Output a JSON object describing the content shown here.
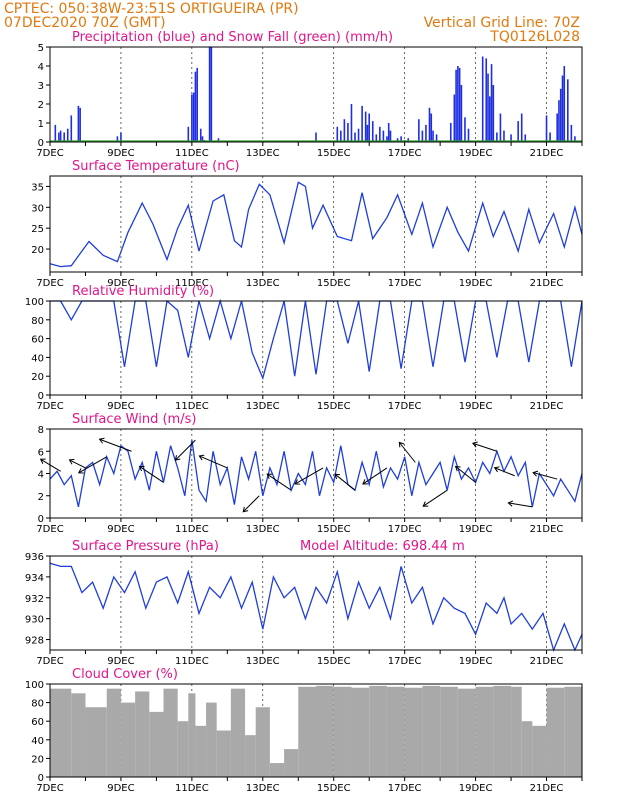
{
  "header": {
    "line1": "CPTEC:   050:38W-23:51S   ORTIGUEIRA (PR)",
    "line2": "07DEC2020 70Z (GMT)",
    "right1": "Vertical Grid Line: 70Z",
    "right2": "TQ0126L028"
  },
  "x_axis": {
    "labels": [
      "7DEC",
      "9DEC",
      "11DEC",
      "13DEC",
      "15DEC",
      "17DEC",
      "19DEC",
      "21DEC"
    ],
    "label_days": [
      0,
      2,
      4,
      6,
      8,
      10,
      12,
      14
    ],
    "day_range": [
      0,
      15
    ]
  },
  "colors": {
    "title": "#e0168a",
    "header": "#e07a10",
    "precip": "#1f2fe0",
    "snow": "#2e9e2e",
    "line": "#1f3fd8",
    "cloud": "#a9a9a9",
    "wind_arrow": "#000000"
  },
  "chart_data": [
    {
      "type": "bar",
      "title": "Precipitation (blue) and Snow Fall (green) (mm/h)",
      "ylim": [
        0,
        5
      ],
      "yticks": [
        "0",
        "1",
        "2",
        "3",
        "4",
        "5"
      ],
      "series": [
        {
          "name": "Precipitation",
          "color": "#1f2fe0",
          "x": [
            0.15,
            0.25,
            0.3,
            0.4,
            0.5,
            0.6,
            0.8,
            0.85,
            1.9,
            2.0,
            3.9,
            4.0,
            4.05,
            4.1,
            4.15,
            4.25,
            4.3,
            4.35,
            4.5,
            4.55,
            4.75,
            7.5,
            8.1,
            8.2,
            8.3,
            8.4,
            8.5,
            8.6,
            8.7,
            8.8,
            8.9,
            8.95,
            9.0,
            9.1,
            9.2,
            9.3,
            9.4,
            9.5,
            9.55,
            9.6,
            9.8,
            9.9,
            10.0,
            10.1,
            10.4,
            10.5,
            10.6,
            10.7,
            10.75,
            10.8,
            10.9,
            11.3,
            11.4,
            11.45,
            11.5,
            11.55,
            11.6,
            11.7,
            11.8,
            12.2,
            12.3,
            12.35,
            12.4,
            12.45,
            12.5,
            12.6,
            12.7,
            12.8,
            13.0,
            13.2,
            13.3,
            13.4,
            14.0,
            14.1,
            14.3,
            14.35,
            14.4,
            14.45,
            14.5,
            14.6,
            14.7,
            14.8
          ],
          "values": [
            0.9,
            0.5,
            0.6,
            0.5,
            0.7,
            1.4,
            1.9,
            1.8,
            0.3,
            0.5,
            0.8,
            2.5,
            2.6,
            3.7,
            3.9,
            0.7,
            0.3,
            0.1,
            5.0,
            5.0,
            0.2,
            0.5,
            0.8,
            0.6,
            1.2,
            1.0,
            2.0,
            0.5,
            0.7,
            1.9,
            1.6,
            0.9,
            1.5,
            1.1,
            0.4,
            0.8,
            0.6,
            0.3,
            1.0,
            0.6,
            0.2,
            0.3,
            0.1,
            0.2,
            1.2,
            0.6,
            0.9,
            1.8,
            1.5,
            0.6,
            0.4,
            1.0,
            2.5,
            3.8,
            4.0,
            3.9,
            3.0,
            1.3,
            0.7,
            4.5,
            4.4,
            3.6,
            2.4,
            4.1,
            3.0,
            0.5,
            1.5,
            0.6,
            0.4,
            1.1,
            1.5,
            0.4,
            1.4,
            0.5,
            1.5,
            2.2,
            2.8,
            3.5,
            4.0,
            3.3,
            0.9,
            0.3
          ]
        },
        {
          "name": "Snow Fall",
          "color": "#2e9e2e",
          "values": [
            0
          ]
        }
      ]
    },
    {
      "type": "line",
      "title": "Surface Temperature (nC)",
      "ylim": [
        14.5,
        37.5
      ],
      "yticks": [
        "20",
        "25",
        "30",
        "35"
      ],
      "x": [
        0,
        0.3,
        0.6,
        0.9,
        1.1,
        1.5,
        1.9,
        2.2,
        2.6,
        2.9,
        3.3,
        3.6,
        3.9,
        4.2,
        4.6,
        4.9,
        5.2,
        5.4,
        5.6,
        5.9,
        6.2,
        6.6,
        7.0,
        7.2,
        7.4,
        7.7,
        8.1,
        8.5,
        8.8,
        9.1,
        9.5,
        9.8,
        10.2,
        10.5,
        10.8,
        11.2,
        11.5,
        11.8,
        12.2,
        12.5,
        12.8,
        13.2,
        13.5,
        13.8,
        14.2,
        14.5,
        14.8,
        15.0
      ],
      "values": [
        16.5,
        15.8,
        16.0,
        19.5,
        21.8,
        18.5,
        17.0,
        24.0,
        31.0,
        26.0,
        17.5,
        25.0,
        30.5,
        19.5,
        31.5,
        33.0,
        22.0,
        20.5,
        29.5,
        35.5,
        33.0,
        21.5,
        36.0,
        35.0,
        25.0,
        30.5,
        23.0,
        22.0,
        33.5,
        22.5,
        27.5,
        33.0,
        23.5,
        31.0,
        20.5,
        30.0,
        24.0,
        19.5,
        31.0,
        23.0,
        29.0,
        19.5,
        29.5,
        21.5,
        28.5,
        20.5,
        30.0,
        23.5
      ]
    },
    {
      "type": "line",
      "title": "Relative Humidity (%)",
      "ylim": [
        0,
        100
      ],
      "yticks": [
        "0",
        "20",
        "40",
        "60",
        "80",
        "100"
      ],
      "x": [
        0,
        0.3,
        0.6,
        0.9,
        1.2,
        1.5,
        1.8,
        2.1,
        2.4,
        2.7,
        3.0,
        3.3,
        3.6,
        3.9,
        4.2,
        4.5,
        4.8,
        5.1,
        5.4,
        5.7,
        6.0,
        6.3,
        6.6,
        6.9,
        7.2,
        7.5,
        7.8,
        8.1,
        8.4,
        8.7,
        9.0,
        9.3,
        9.6,
        9.9,
        10.2,
        10.5,
        10.8,
        11.1,
        11.4,
        11.7,
        12.0,
        12.3,
        12.6,
        12.9,
        13.2,
        13.5,
        13.8,
        14.1,
        14.4,
        14.7,
        15.0
      ],
      "values": [
        100,
        100,
        80,
        100,
        100,
        100,
        100,
        30,
        100,
        100,
        30,
        100,
        90,
        40,
        100,
        60,
        100,
        60,
        100,
        45,
        18,
        60,
        100,
        20,
        100,
        22,
        100,
        100,
        55,
        100,
        25,
        100,
        100,
        28,
        100,
        100,
        30,
        100,
        100,
        35,
        100,
        100,
        40,
        100,
        100,
        35,
        100,
        100,
        100,
        30,
        100
      ]
    },
    {
      "type": "line",
      "title": "Surface Wind (m/s)",
      "ylim": [
        0,
        8
      ],
      "yticks": [
        "0",
        "2",
        "4",
        "6",
        "8"
      ],
      "x": [
        0,
        0.2,
        0.4,
        0.6,
        0.8,
        1.0,
        1.2,
        1.4,
        1.6,
        1.8,
        2.0,
        2.2,
        2.4,
        2.6,
        2.8,
        3.0,
        3.2,
        3.4,
        3.6,
        3.8,
        4.0,
        4.2,
        4.4,
        4.6,
        4.8,
        5.0,
        5.2,
        5.4,
        5.6,
        5.8,
        6.0,
        6.2,
        6.4,
        6.6,
        6.8,
        7.0,
        7.2,
        7.4,
        7.6,
        7.8,
        8.0,
        8.2,
        8.4,
        8.6,
        8.8,
        9.0,
        9.2,
        9.4,
        9.6,
        9.8,
        10.0,
        10.2,
        10.4,
        10.6,
        10.8,
        11.0,
        11.2,
        11.4,
        11.6,
        11.8,
        12.0,
        12.2,
        12.4,
        12.6,
        12.8,
        13.0,
        13.2,
        13.4,
        13.6,
        13.8,
        14.0,
        14.2,
        14.4,
        14.6,
        14.8,
        15.0
      ],
      "values": [
        3.5,
        4.2,
        3.0,
        3.8,
        1.0,
        4.5,
        5.0,
        3.0,
        5.5,
        4.0,
        6.5,
        6.0,
        3.5,
        5.0,
        2.5,
        6.0,
        3.2,
        6.5,
        4.5,
        2.0,
        7.0,
        2.5,
        1.5,
        6.0,
        3.0,
        4.5,
        1.2,
        5.5,
        3.5,
        6.0,
        2.0,
        4.5,
        3.0,
        6.0,
        2.5,
        4.0,
        3.0,
        6.0,
        2.0,
        4.5,
        3.2,
        6.5,
        3.0,
        2.5,
        5.0,
        3.0,
        6.0,
        2.8,
        4.5,
        3.5,
        5.5,
        2.0,
        5.0,
        3.0,
        4.0,
        5.0,
        2.5,
        5.5,
        3.5,
        4.5,
        3.2,
        5.0,
        4.0,
        6.0,
        4.2,
        5.5,
        3.8,
        5.0,
        1.0,
        4.0,
        3.0,
        2.0,
        3.5,
        2.5,
        1.5,
        4.0
      ],
      "arrow_x": [
        0.3,
        1.0,
        1.6,
        2.3,
        3.2,
        4.1,
        5.0,
        5.9,
        6.8,
        7.7,
        8.6,
        9.5,
        10.3,
        11.2,
        12.0,
        12.6,
        13.1,
        13.6,
        14.3
      ],
      "arrow_u": [
        -2.5,
        -2.0,
        -3.5,
        -4.0,
        -3.0,
        -2.5,
        -3.5,
        -2.0,
        -3.0,
        -3.5,
        -2.5,
        -3.0,
        -2.0,
        -3.0,
        -2.5,
        -3.0,
        -2.5,
        -3.0,
        -3.0
      ],
      "arrow_v": [
        1.5,
        1.0,
        -2.0,
        1.5,
        2.0,
        -2.5,
        1.5,
        -2.0,
        2.0,
        -2.0,
        2.0,
        -2.0,
        2.5,
        -2.0,
        2.0,
        1.0,
        1.0,
        0.5,
        0.8
      ]
    },
    {
      "type": "line",
      "title": "Surface Pressure (hPa)",
      "subtitle": "Model Altitude: 698.44 m",
      "ylim": [
        927,
        936
      ],
      "yticks": [
        "928",
        "930",
        "932",
        "934",
        "936"
      ],
      "x": [
        0,
        0.3,
        0.6,
        0.9,
        1.2,
        1.5,
        1.8,
        2.1,
        2.4,
        2.7,
        3.0,
        3.3,
        3.6,
        3.9,
        4.2,
        4.5,
        4.8,
        5.1,
        5.4,
        5.7,
        6.0,
        6.3,
        6.6,
        6.9,
        7.2,
        7.5,
        7.8,
        8.1,
        8.4,
        8.7,
        9.0,
        9.3,
        9.6,
        9.9,
        10.2,
        10.5,
        10.8,
        11.1,
        11.4,
        11.7,
        12.0,
        12.3,
        12.6,
        12.8,
        13.0,
        13.3,
        13.6,
        13.9,
        14.2,
        14.5,
        14.8,
        15.0
      ],
      "values": [
        935.3,
        935.0,
        935.0,
        932.5,
        933.5,
        931.0,
        934.0,
        932.5,
        934.5,
        931.0,
        933.5,
        934.0,
        931.5,
        934.5,
        930.5,
        933.0,
        932.0,
        934.0,
        931.0,
        933.5,
        929.0,
        934.0,
        932.0,
        933.0,
        930.0,
        933.0,
        931.5,
        934.5,
        930.0,
        933.5,
        931.0,
        933.0,
        930.0,
        935.0,
        931.5,
        933.0,
        929.5,
        932.0,
        931.0,
        930.5,
        928.5,
        931.5,
        930.5,
        932.0,
        929.5,
        930.5,
        929.0,
        930.5,
        927.0,
        929.5,
        927.0,
        928.5
      ]
    },
    {
      "type": "bar",
      "title": "Cloud Cover (%)",
      "ylim": [
        0,
        100
      ],
      "yticks": [
        "0",
        "20",
        "40",
        "60",
        "80",
        "100"
      ],
      "segments_x": [
        0,
        0.6,
        1.0,
        1.6,
        2.0,
        2.4,
        2.8,
        3.2,
        3.6,
        3.9,
        4.1,
        4.4,
        4.7,
        5.1,
        5.5,
        5.8,
        6.2,
        6.6,
        7.0,
        7.5,
        8.0,
        8.5,
        9.0,
        9.5,
        10.0,
        10.5,
        11.0,
        11.5,
        12.0,
        12.5,
        13.0,
        13.3,
        13.6,
        14.0,
        14.5
      ],
      "segments_end": [
        0.6,
        1.0,
        1.6,
        2.0,
        2.4,
        2.8,
        3.2,
        3.6,
        3.9,
        4.1,
        4.4,
        4.7,
        5.1,
        5.5,
        5.8,
        6.2,
        6.6,
        7.0,
        7.5,
        8.0,
        8.5,
        9.0,
        9.5,
        10.0,
        10.5,
        11.0,
        11.5,
        12.0,
        12.5,
        13.0,
        13.3,
        13.6,
        14.0,
        14.5,
        15.0
      ],
      "values": [
        95,
        90,
        75,
        95,
        80,
        92,
        70,
        95,
        60,
        90,
        55,
        80,
        50,
        95,
        45,
        75,
        15,
        30,
        97,
        98,
        97,
        96,
        98,
        97,
        96,
        98,
        97,
        95,
        97,
        98,
        97,
        60,
        55,
        96,
        97
      ]
    }
  ]
}
